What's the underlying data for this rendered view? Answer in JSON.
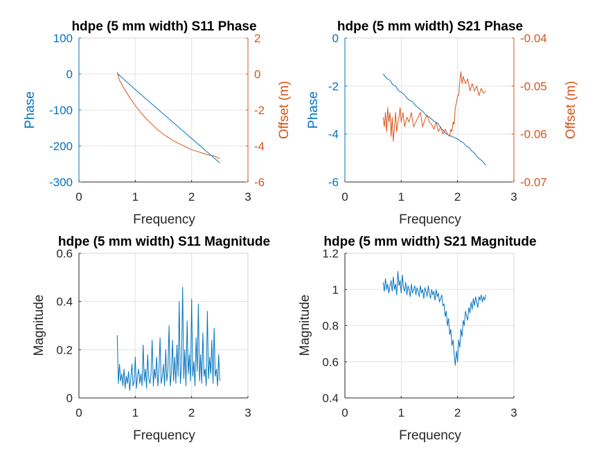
{
  "colors": {
    "blue": "#0072BD",
    "orange": "#D95319",
    "axis": "#262626",
    "grid": "#e3e3e3",
    "frame": "#d6d6d6"
  },
  "chart_data": [
    {
      "id": "s11_phase",
      "type": "line",
      "title": "hdpe (5 mm width) S11 Phase",
      "xlabel": "Frequency",
      "ylabel": "Phase",
      "ylabel_right": "Offset (m)",
      "xlim": [
        0,
        3
      ],
      "ylim": [
        -300,
        100
      ],
      "ylim_right": [
        -6,
        2
      ],
      "xticks": [
        0,
        1,
        2,
        3
      ],
      "yticks": [
        -300,
        -200,
        -100,
        0,
        100
      ],
      "yticks_right": [
        -6,
        -4,
        -2,
        0,
        2
      ],
      "grid": true,
      "series": [
        {
          "axis": "left",
          "color": "blue",
          "x": [
            0.68,
            1.0,
            1.5,
            2.0,
            2.5
          ],
          "y": [
            2,
            -43,
            -111,
            -179,
            -247
          ]
        },
        {
          "axis": "right",
          "color": "orange",
          "x": [
            0.68,
            0.72,
            0.8,
            0.9,
            1.0,
            1.1,
            1.2,
            1.3,
            1.4,
            1.5,
            1.6,
            1.7,
            1.8,
            1.9,
            2.0,
            2.1,
            2.2,
            2.3,
            2.4,
            2.5
          ],
          "y": [
            0.1,
            -0.35,
            -0.8,
            -1.3,
            -1.75,
            -2.15,
            -2.5,
            -2.8,
            -3.1,
            -3.35,
            -3.55,
            -3.75,
            -3.9,
            -4.05,
            -4.2,
            -4.3,
            -4.4,
            -4.5,
            -4.55,
            -4.7
          ]
        }
      ]
    },
    {
      "id": "s21_phase",
      "type": "line",
      "title": "hdpe (5 mm width) S21 Phase",
      "xlabel": "Frequency",
      "ylabel": "Phase",
      "ylabel_right": "Offset (m)",
      "xlim": [
        0,
        3
      ],
      "ylim": [
        -6,
        0
      ],
      "ylim_right": [
        -0.07,
        -0.04
      ],
      "xticks": [
        0,
        1,
        2,
        3
      ],
      "yticks": [
        -6,
        -4,
        -2,
        0
      ],
      "yticks_right": [
        -0.07,
        -0.06,
        -0.05,
        -0.04
      ],
      "grid": true,
      "series": [
        {
          "axis": "left",
          "color": "blue",
          "x": [
            0.68,
            0.75,
            0.8,
            0.85,
            0.9,
            0.95,
            1.0,
            1.05,
            1.1,
            1.15,
            1.2,
            1.25,
            1.3,
            1.35,
            1.4,
            1.45,
            1.5,
            1.55,
            1.6,
            1.65,
            1.7,
            1.75,
            1.8,
            1.85,
            1.9,
            1.95,
            2.0,
            2.05,
            2.1,
            2.15,
            2.2,
            2.25,
            2.3,
            2.35,
            2.4,
            2.45,
            2.5
          ],
          "y": [
            -1.5,
            -1.7,
            -1.75,
            -1.95,
            -2.0,
            -2.2,
            -2.25,
            -2.35,
            -2.5,
            -2.6,
            -2.65,
            -2.8,
            -2.9,
            -3.0,
            -3.1,
            -3.25,
            -3.3,
            -3.4,
            -3.5,
            -3.55,
            -3.75,
            -3.85,
            -4.0,
            -4.05,
            -4.1,
            -4.15,
            -4.2,
            -4.3,
            -4.35,
            -4.5,
            -4.55,
            -4.7,
            -4.8,
            -4.95,
            -5.05,
            -5.15,
            -5.3
          ]
        },
        {
          "axis": "right",
          "color": "orange",
          "x": [
            0.68,
            0.7,
            0.72,
            0.74,
            0.76,
            0.78,
            0.8,
            0.82,
            0.84,
            0.86,
            0.88,
            0.9,
            0.92,
            0.94,
            0.96,
            0.98,
            1.0,
            1.03,
            1.06,
            1.1,
            1.14,
            1.18,
            1.22,
            1.26,
            1.3,
            1.34,
            1.38,
            1.42,
            1.46,
            1.5,
            1.54,
            1.58,
            1.62,
            1.66,
            1.7,
            1.74,
            1.78,
            1.82,
            1.86,
            1.88,
            1.9,
            1.92,
            1.94,
            1.96,
            1.98,
            2.0,
            2.02,
            2.04,
            2.06,
            2.08,
            2.1,
            2.14,
            2.18,
            2.22,
            2.26,
            2.3,
            2.34,
            2.38,
            2.42,
            2.46,
            2.5
          ],
          "y": [
            -0.0565,
            -0.0585,
            -0.0555,
            -0.0595,
            -0.0545,
            -0.0575,
            -0.0555,
            -0.0605,
            -0.0565,
            -0.0615,
            -0.0585,
            -0.0555,
            -0.0595,
            -0.0575,
            -0.0565,
            -0.0545,
            -0.0575,
            -0.0555,
            -0.0585,
            -0.0565,
            -0.0575,
            -0.0555,
            -0.0585,
            -0.0575,
            -0.0565,
            -0.0555,
            -0.0585,
            -0.057,
            -0.056,
            -0.0575,
            -0.058,
            -0.059,
            -0.0575,
            -0.0595,
            -0.0585,
            -0.06,
            -0.059,
            -0.06,
            -0.0605,
            -0.059,
            -0.0595,
            -0.0575,
            -0.058,
            -0.0545,
            -0.0535,
            -0.052,
            -0.052,
            -0.049,
            -0.047,
            -0.0495,
            -0.048,
            -0.0495,
            -0.0485,
            -0.051,
            -0.0495,
            -0.051,
            -0.05,
            -0.052,
            -0.0505,
            -0.0515,
            -0.051
          ]
        }
      ]
    },
    {
      "id": "s11_mag",
      "type": "line",
      "title": "hdpe (5 mm width) S11 Magnitude",
      "xlabel": "Frequency",
      "ylabel": "Magnitude",
      "xlim": [
        0,
        3
      ],
      "ylim": [
        0,
        0.6
      ],
      "xticks": [
        0,
        1,
        2,
        3
      ],
      "yticks": [
        0,
        0.2,
        0.4,
        0.6
      ],
      "grid": true,
      "series": [
        {
          "axis": "left",
          "color": "blue",
          "x": [
            0.68,
            0.7,
            0.72,
            0.74,
            0.76,
            0.78,
            0.8,
            0.82,
            0.84,
            0.86,
            0.88,
            0.9,
            0.92,
            0.94,
            0.96,
            0.98,
            1.0,
            1.02,
            1.04,
            1.06,
            1.08,
            1.1,
            1.12,
            1.14,
            1.16,
            1.18,
            1.2,
            1.22,
            1.24,
            1.26,
            1.28,
            1.3,
            1.32,
            1.34,
            1.36,
            1.38,
            1.4,
            1.42,
            1.44,
            1.46,
            1.48,
            1.5,
            1.52,
            1.54,
            1.56,
            1.58,
            1.6,
            1.62,
            1.64,
            1.66,
            1.68,
            1.7,
            1.72,
            1.74,
            1.76,
            1.78,
            1.8,
            1.82,
            1.84,
            1.86,
            1.88,
            1.9,
            1.92,
            1.94,
            1.96,
            1.98,
            2.0,
            2.02,
            2.04,
            2.06,
            2.08,
            2.1,
            2.12,
            2.14,
            2.16,
            2.18,
            2.2,
            2.22,
            2.24,
            2.26,
            2.28,
            2.3,
            2.32,
            2.34,
            2.36,
            2.38,
            2.4,
            2.42,
            2.44,
            2.46,
            2.48,
            2.5
          ],
          "y": [
            0.26,
            0.06,
            0.14,
            0.07,
            0.1,
            0.05,
            0.12,
            0.04,
            0.09,
            0.06,
            0.11,
            0.03,
            0.08,
            0.14,
            0.05,
            0.07,
            0.17,
            0.04,
            0.09,
            0.12,
            0.06,
            0.1,
            0.05,
            0.22,
            0.07,
            0.12,
            0.04,
            0.18,
            0.08,
            0.06,
            0.1,
            0.24,
            0.05,
            0.12,
            0.08,
            0.17,
            0.05,
            0.11,
            0.25,
            0.06,
            0.09,
            0.14,
            0.05,
            0.2,
            0.07,
            0.12,
            0.3,
            0.05,
            0.1,
            0.24,
            0.07,
            0.17,
            0.06,
            0.22,
            0.09,
            0.4,
            0.06,
            0.13,
            0.46,
            0.08,
            0.2,
            0.05,
            0.32,
            0.1,
            0.18,
            0.07,
            0.41,
            0.09,
            0.15,
            0.05,
            0.25,
            0.11,
            0.39,
            0.07,
            0.18,
            0.06,
            0.27,
            0.09,
            0.12,
            0.05,
            0.36,
            0.08,
            0.17,
            0.1,
            0.24,
            0.06,
            0.29,
            0.09,
            0.12,
            0.05,
            0.18,
            0.07
          ]
        }
      ]
    },
    {
      "id": "s21_mag",
      "type": "line",
      "title": "hdpe (5 mm width) S21 Magnitude",
      "xlabel": "Frequency",
      "ylabel": "Magnitude",
      "xlim": [
        0,
        3
      ],
      "ylim": [
        0.4,
        1.2
      ],
      "xticks": [
        0,
        1,
        2,
        3
      ],
      "yticks": [
        0.4,
        0.6,
        0.8,
        1,
        1.2
      ],
      "grid": true,
      "series": [
        {
          "axis": "left",
          "color": "blue",
          "x": [
            0.68,
            0.7,
            0.72,
            0.74,
            0.76,
            0.78,
            0.8,
            0.82,
            0.84,
            0.86,
            0.88,
            0.9,
            0.92,
            0.94,
            0.96,
            0.98,
            1.0,
            1.02,
            1.04,
            1.06,
            1.08,
            1.1,
            1.12,
            1.14,
            1.16,
            1.18,
            1.2,
            1.22,
            1.24,
            1.26,
            1.28,
            1.3,
            1.32,
            1.34,
            1.36,
            1.38,
            1.4,
            1.42,
            1.44,
            1.46,
            1.48,
            1.5,
            1.52,
            1.54,
            1.56,
            1.58,
            1.6,
            1.62,
            1.64,
            1.66,
            1.68,
            1.7,
            1.72,
            1.74,
            1.76,
            1.78,
            1.8,
            1.82,
            1.84,
            1.86,
            1.88,
            1.9,
            1.92,
            1.94,
            1.96,
            1.98,
            2.0,
            2.02,
            2.04,
            2.06,
            2.08,
            2.1,
            2.12,
            2.14,
            2.16,
            2.18,
            2.2,
            2.22,
            2.24,
            2.26,
            2.28,
            2.3,
            2.32,
            2.34,
            2.36,
            2.38,
            2.4,
            2.42,
            2.44,
            2.46,
            2.48,
            2.5
          ],
          "y": [
            1.04,
            0.99,
            1.06,
            1.0,
            1.03,
            0.98,
            1.02,
            1.05,
            0.99,
            1.07,
            1.0,
            1.03,
            0.97,
            1.1,
            1.02,
            1.05,
            0.98,
            1.08,
            1.01,
            0.99,
            1.04,
            0.97,
            1.02,
            1.0,
            0.96,
            1.03,
            0.98,
            1.0,
            1.02,
            0.97,
            1.01,
            0.99,
            0.96,
            1.02,
            0.98,
            1.0,
            0.95,
            1.01,
            0.99,
            0.96,
            1.02,
            0.98,
            0.95,
            1.0,
            0.97,
            0.99,
            0.94,
            1.0,
            0.96,
            0.98,
            0.93,
            0.95,
            0.97,
            0.91,
            0.92,
            0.85,
            0.88,
            0.8,
            0.84,
            0.75,
            0.78,
            0.69,
            0.72,
            0.64,
            0.58,
            0.66,
            0.6,
            0.72,
            0.68,
            0.78,
            0.74,
            0.83,
            0.8,
            0.88,
            0.85,
            0.83,
            0.9,
            0.87,
            0.93,
            0.89,
            0.95,
            0.91,
            0.96,
            0.93,
            0.9,
            0.96,
            0.94,
            0.97,
            0.93,
            0.96,
            0.94,
            0.97
          ]
        }
      ]
    }
  ]
}
